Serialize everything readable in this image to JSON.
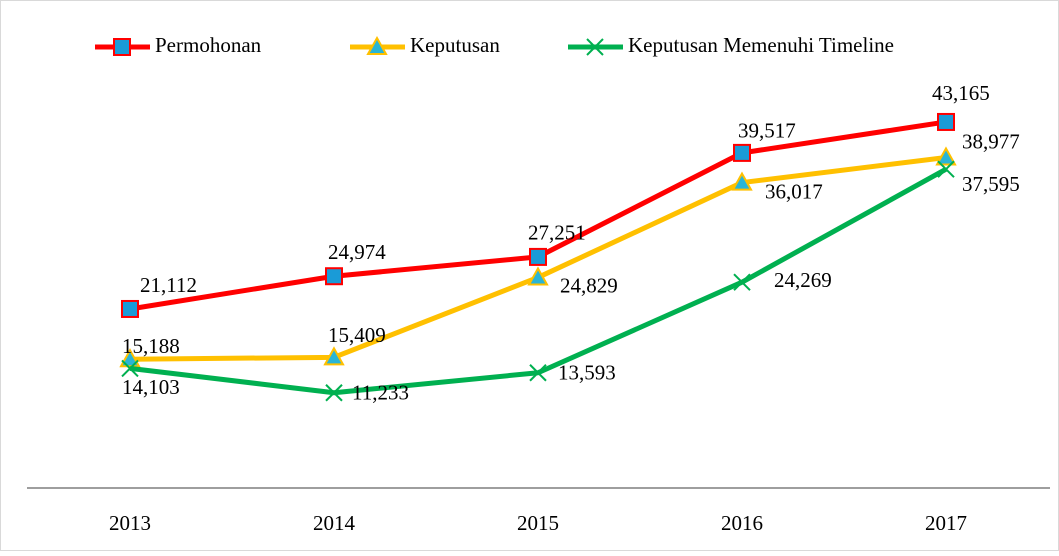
{
  "chart_data": {
    "type": "line",
    "categories": [
      "2013",
      "2014",
      "2015",
      "2016",
      "2017"
    ],
    "series": [
      {
        "name": "Permohonan",
        "color": "#ff0000",
        "marker": "square",
        "values": [
          21112,
          24974,
          27251,
          39517,
          43165
        ],
        "value_labels": [
          "21,112",
          "24,974",
          "27,251",
          "39,517",
          "43,165"
        ]
      },
      {
        "name": "Keputusan",
        "color": "#ffc000",
        "marker": "triangle",
        "values": [
          15188,
          15409,
          24829,
          36017,
          38977
        ],
        "value_labels": [
          "15,188",
          "15,409",
          "24,829",
          "36,017",
          "38,977"
        ]
      },
      {
        "name": "Keputusan Memenuhi Timeline",
        "color": "#00b050",
        "marker": "x",
        "values": [
          14103,
          11233,
          13593,
          24269,
          37595
        ],
        "value_labels": [
          "14,103",
          "11,233",
          "13,593",
          "24,269",
          "37,595"
        ]
      }
    ],
    "ylim": [
      0,
      50000
    ],
    "grid": false,
    "legend": "top"
  }
}
